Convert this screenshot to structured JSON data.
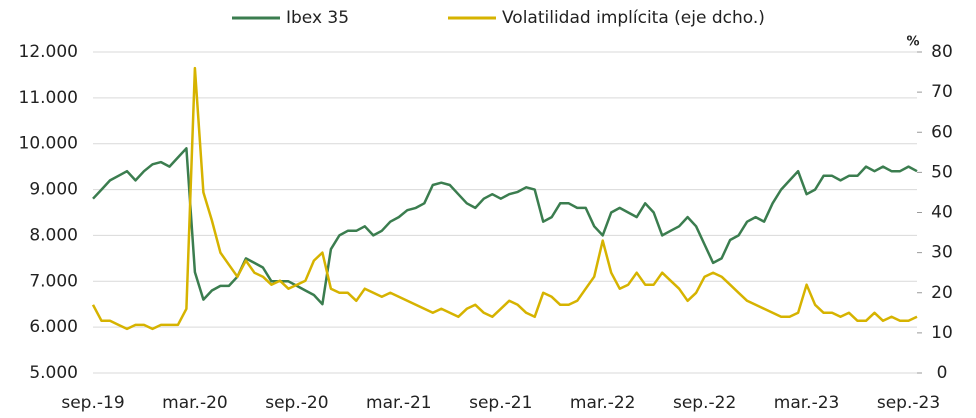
{
  "chart_data": {
    "type": "line",
    "categories": [
      "sep.-19",
      null,
      null,
      null,
      null,
      null,
      null,
      null,
      null,
      null,
      null,
      null,
      "mar.-20",
      null,
      null,
      null,
      null,
      null,
      null,
      null,
      null,
      null,
      null,
      null,
      "sep.-20",
      null,
      null,
      null,
      null,
      null,
      null,
      null,
      null,
      null,
      null,
      null,
      "mar.-21",
      null,
      null,
      null,
      null,
      null,
      null,
      null,
      null,
      null,
      null,
      null,
      "sep.-21",
      null,
      null,
      null,
      null,
      null,
      null,
      null,
      null,
      null,
      null,
      null,
      "mar.-22",
      null,
      null,
      null,
      null,
      null,
      null,
      null,
      null,
      null,
      null,
      null,
      "sep.-22",
      null,
      null,
      null,
      null,
      null,
      null,
      null,
      null,
      null,
      null,
      null,
      "mar.-23",
      null,
      null,
      null,
      null,
      null,
      null,
      null,
      null,
      null,
      null,
      null,
      "sep.-23",
      null
    ],
    "series": [
      {
        "name": "Ibex 35",
        "color": "#3b7d4f",
        "axis": "y",
        "values": [
          8800,
          9000,
          9200,
          9300,
          9400,
          9200,
          9400,
          9550,
          9600,
          9500,
          9700,
          9900,
          7200,
          6600,
          6800,
          6900,
          6900,
          7100,
          7500,
          7400,
          7300,
          7000,
          7000,
          7000,
          6900,
          6800,
          6700,
          6500,
          7700,
          8000,
          8100,
          8100,
          8200,
          8000,
          8100,
          8300,
          8400,
          8550,
          8600,
          8700,
          9100,
          9150,
          9100,
          8900,
          8700,
          8600,
          8800,
          8900,
          8800,
          8900,
          8950,
          9050,
          9000,
          8300,
          8400,
          8700,
          8700,
          8600,
          8600,
          8200,
          8000,
          8500,
          8600,
          8500,
          8400,
          8700,
          8500,
          8000,
          8100,
          8200,
          8400,
          8200,
          7800,
          7400,
          7500,
          7900,
          8000,
          8300,
          8400,
          8300,
          8700,
          9000,
          9200,
          9400,
          8900,
          9000,
          9300,
          9300,
          9200,
          9300,
          9300,
          9500,
          9400,
          9500,
          9400,
          9400,
          9500,
          9400
        ]
      },
      {
        "name": "Volatilidad implícita (eje dcho.)",
        "color": "#d6b300",
        "axis": "y2",
        "values": [
          17,
          13,
          13,
          12,
          11,
          12,
          12,
          11,
          12,
          12,
          12,
          16,
          76,
          45,
          38,
          30,
          27,
          24,
          28,
          25,
          24,
          22,
          23,
          21,
          22,
          23,
          28,
          30,
          21,
          20,
          20,
          18,
          21,
          20,
          19,
          20,
          19,
          18,
          17,
          16,
          15,
          16,
          15,
          14,
          16,
          17,
          15,
          14,
          16,
          18,
          17,
          15,
          14,
          20,
          19,
          17,
          17,
          18,
          21,
          24,
          33,
          25,
          21,
          22,
          25,
          22,
          22,
          25,
          23,
          21,
          18,
          20,
          24,
          25,
          24,
          22,
          20,
          18,
          17,
          16,
          15,
          14,
          14,
          15,
          22,
          17,
          15,
          15,
          14,
          15,
          13,
          13,
          15,
          13,
          14,
          13,
          13,
          14
        ]
      }
    ],
    "ylim": [
      5000,
      12000
    ],
    "yticks": [
      {
        "value": 5000,
        "label": "5.000"
      },
      {
        "value": 6000,
        "label": "6.000"
      },
      {
        "value": 7000,
        "label": "7.000"
      },
      {
        "value": 8000,
        "label": "8.000"
      },
      {
        "value": 9000,
        "label": "9.000"
      },
      {
        "value": 10000,
        "label": "10.000"
      },
      {
        "value": 11000,
        "label": "11.000"
      },
      {
        "value": 12000,
        "label": "12.000"
      }
    ],
    "y2lim": [
      0,
      80
    ],
    "y2ticks": [
      0,
      10,
      20,
      30,
      40,
      50,
      60,
      70,
      80
    ],
    "y2_unit": "%",
    "grid": true
  }
}
